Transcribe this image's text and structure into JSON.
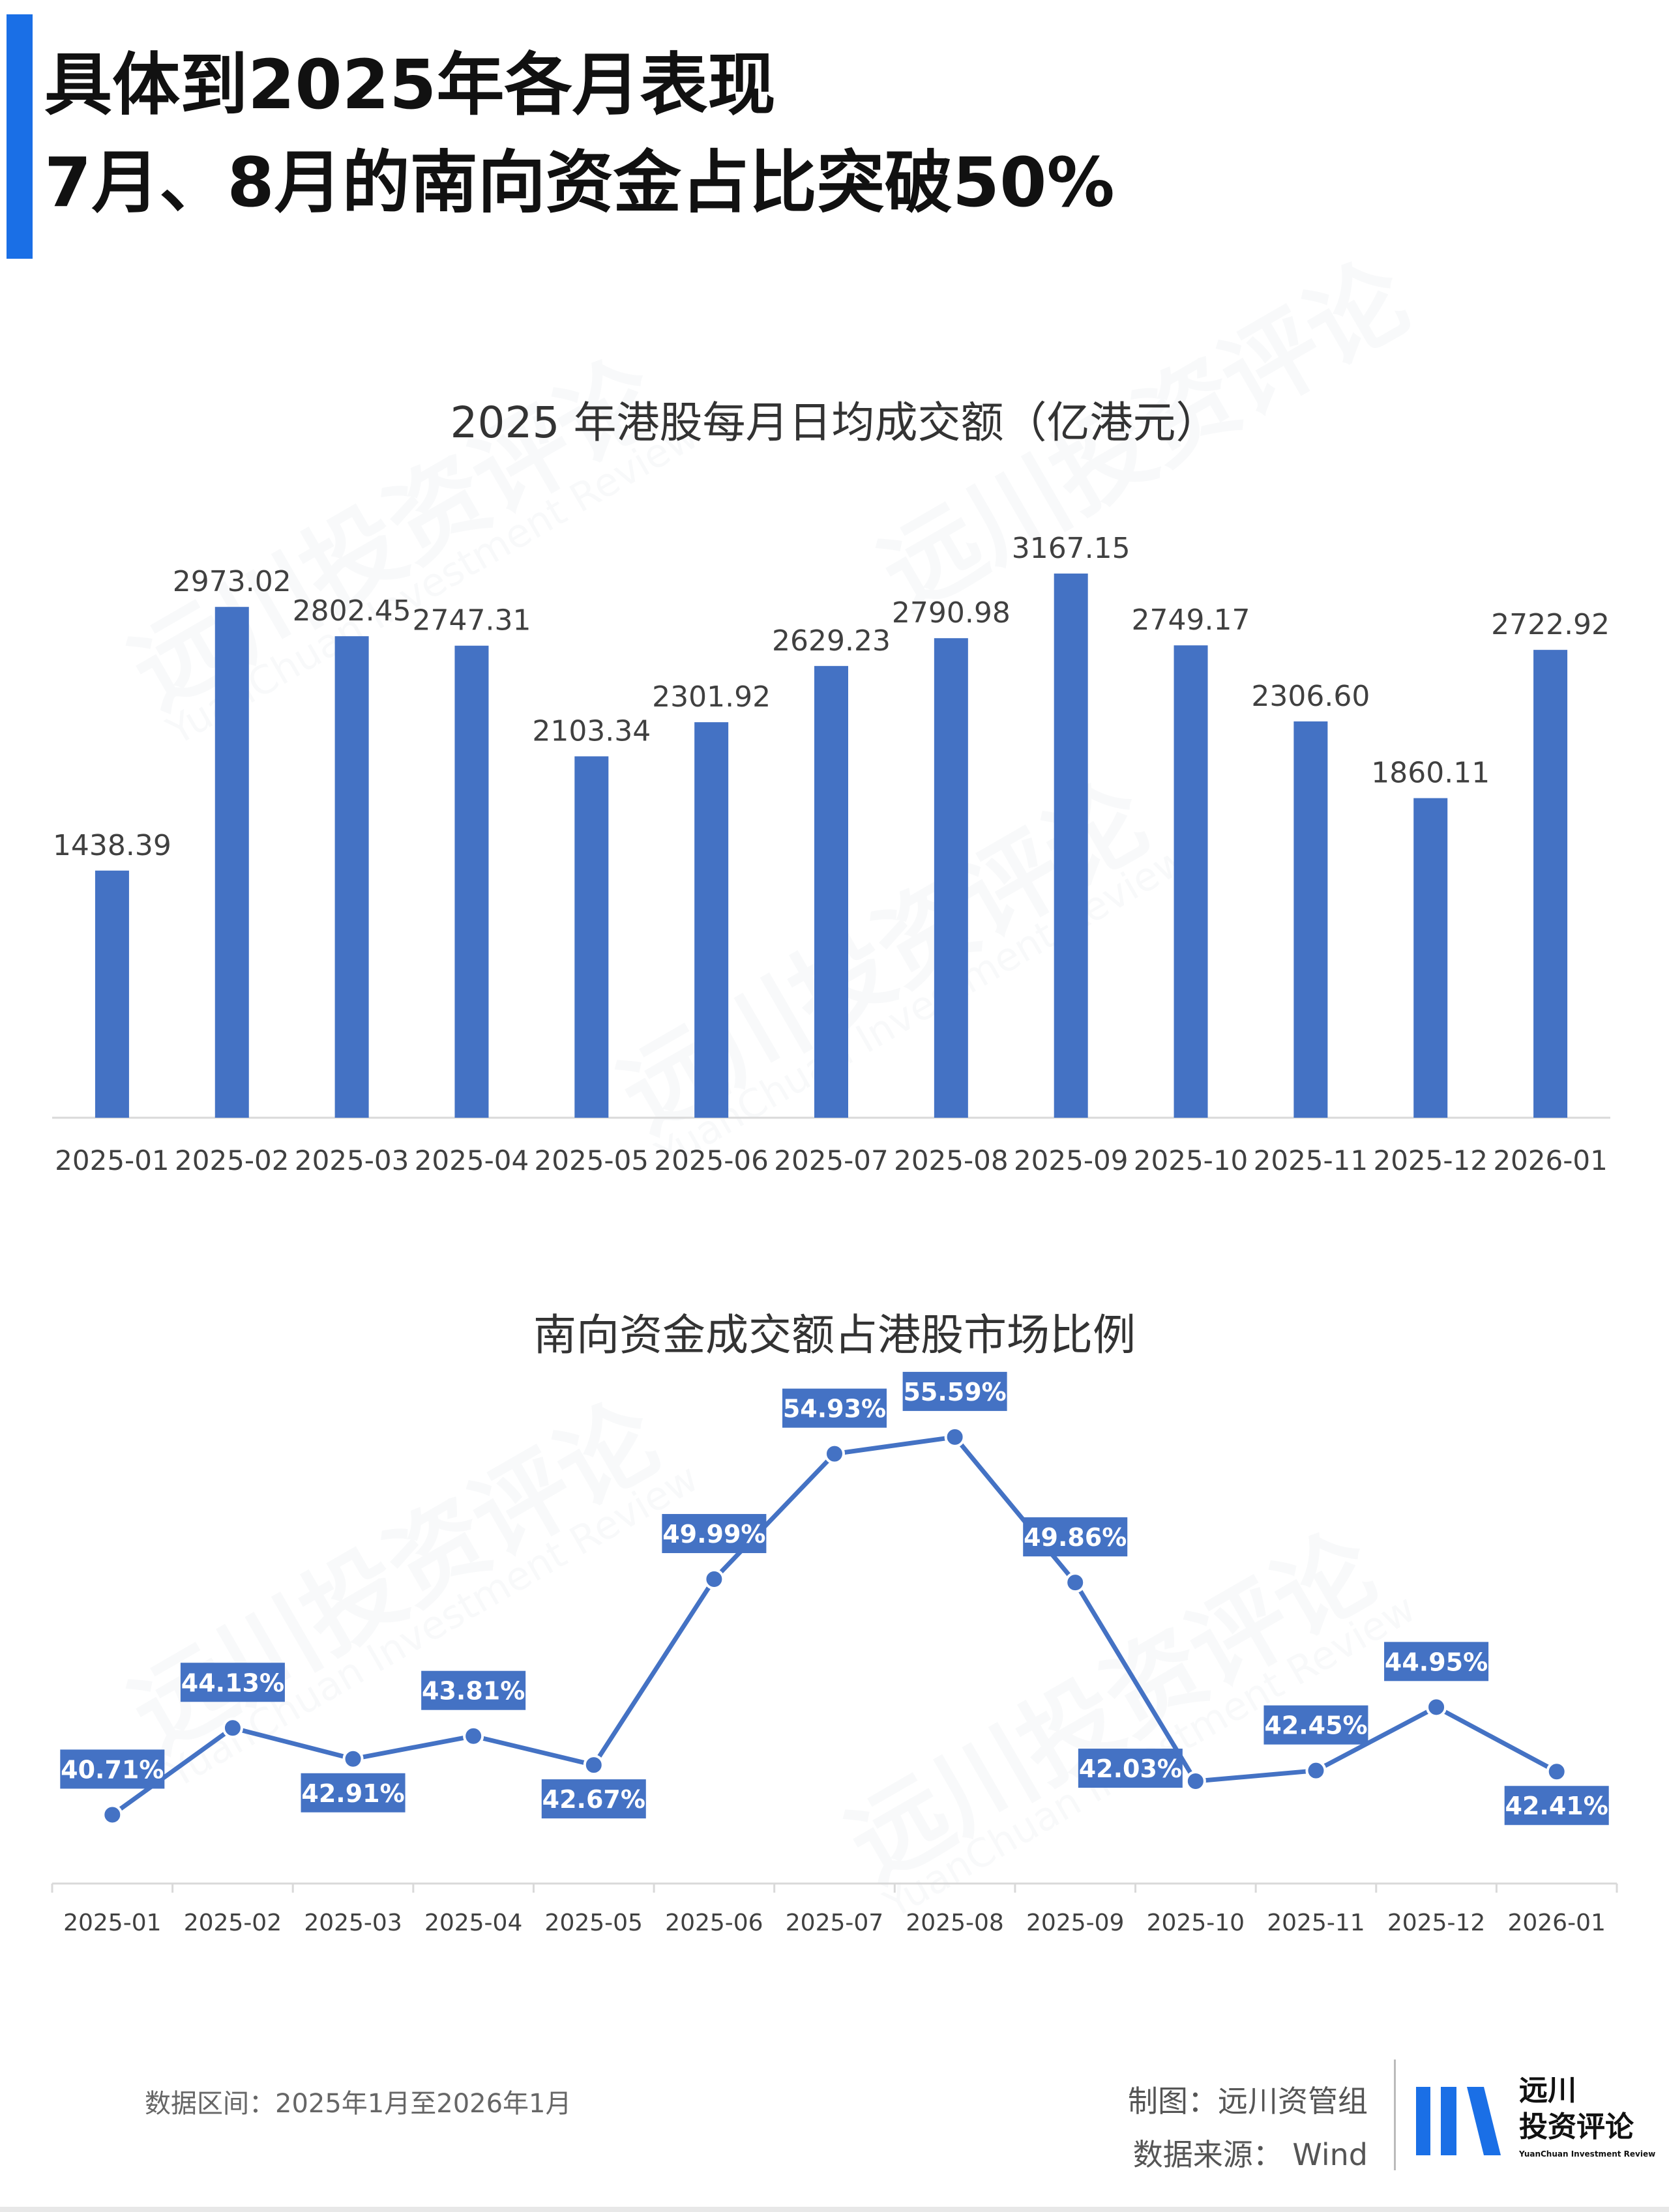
{
  "headline": {
    "line1": "具体到2025年各月表现",
    "line2": "7月、8月的南向资金占比突破50%"
  },
  "watermark": {
    "brand": "远川投资评论",
    "brand_en": "YuanChuan Investment Review"
  },
  "colors": {
    "accent": "#1a6fe6",
    "bar": "#4472c4",
    "line": "#4472c4",
    "label_bg": "#4472c4",
    "axis": "#d9d9d9"
  },
  "chart_data": [
    {
      "type": "bar",
      "title": "2025 年港股每月日均成交额（亿港元）",
      "categories": [
        "2025-01",
        "2025-02",
        "2025-03",
        "2025-04",
        "2025-05",
        "2025-06",
        "2025-07",
        "2025-08",
        "2025-09",
        "2025-10",
        "2025-11",
        "2025-12",
        "2026-01"
      ],
      "values": [
        1438.39,
        2973.02,
        2802.45,
        2747.31,
        2103.34,
        2301.92,
        2629.23,
        2790.98,
        3167.15,
        2749.17,
        2306.6,
        1860.11,
        2722.92
      ],
      "value_labels": [
        "1438.39",
        "2973.02",
        "2802.45",
        "2747.31",
        "2103.34",
        "2301.92",
        "2629.23",
        "2790.98",
        "3167.15",
        "2749.17",
        "2306.60",
        "1860.11",
        "2722.92"
      ],
      "ylim": [
        0,
        3300
      ],
      "grid": false,
      "legend": "none"
    },
    {
      "type": "line",
      "title": "南向资金成交额占港股市场比例",
      "categories": [
        "2025-01",
        "2025-02",
        "2025-03",
        "2025-04",
        "2025-05",
        "2025-06",
        "2025-07",
        "2025-08",
        "2025-09",
        "2025-10",
        "2025-11",
        "2025-12",
        "2026-01"
      ],
      "values": [
        40.71,
        44.13,
        42.91,
        43.81,
        42.67,
        49.99,
        54.93,
        55.59,
        49.86,
        42.03,
        42.45,
        44.95,
        42.41
      ],
      "value_labels": [
        "40.71%",
        "44.13%",
        "42.91%",
        "43.81%",
        "42.67%",
        "49.99%",
        "54.93%",
        "55.59%",
        "49.86%",
        "42.03%",
        "42.45%",
        "44.95%",
        "42.41%"
      ],
      "label_positions": [
        "above",
        "above",
        "below",
        "above",
        "below",
        "above",
        "above",
        "above",
        "above",
        "left",
        "above",
        "above",
        "below"
      ],
      "ylim": [
        38,
        57
      ],
      "grid": false,
      "legend": "none"
    }
  ],
  "footer": {
    "range": "数据区间：2025年1月至2026年1月",
    "credit": "制图：远川资管组",
    "source": "数据来源：  Wind"
  },
  "logo": {
    "line1": "远川",
    "line2": "投资评论",
    "sub": "YuanChuan Investment Review"
  }
}
